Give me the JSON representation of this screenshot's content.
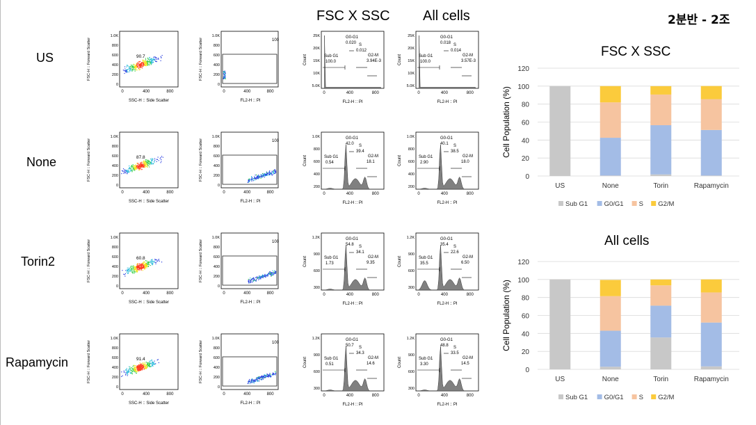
{
  "header": {
    "fsc_ssc": "FSC X SSC",
    "all_cells": "All cells",
    "korean_title": "2분반 - 2조"
  },
  "rows": [
    {
      "label": "US",
      "gate_pct": "90.7",
      "pi_gate": "100",
      "fsc": {
        "g0g1": "G0-G1",
        "g0g1_v": "0.020",
        "s": "S",
        "s_v": "0.012",
        "subg1": "Sub G1",
        "subg1_v": "100.0",
        "g2m": "G2-M",
        "g2m_v": "3.94E-3",
        "yticks": [
          "5.0K",
          "10K",
          "15K",
          "20K",
          "25K"
        ]
      },
      "all": {
        "g0g1": "G0-G1",
        "g0g1_v": "0.018",
        "s": "S",
        "s_v": "0.014",
        "subg1": "Sub G1",
        "subg1_v": "100.0",
        "g2m": "G2-M",
        "g2m_v": "3.57E-3",
        "yticks": [
          "5.0K",
          "10K",
          "15K",
          "20K",
          "25K"
        ]
      }
    },
    {
      "label": "None",
      "gate_pct": "87.8",
      "pi_gate": "100",
      "fsc": {
        "g0g1": "G0-G1",
        "g0g1_v": "42.0",
        "s": "S",
        "s_v": "39.4",
        "subg1": "Sub G1",
        "subg1_v": "0.54",
        "g2m": "G2-M",
        "g2m_v": "18.1",
        "yticks": [
          "200",
          "400",
          "600",
          "800",
          "1.0K"
        ]
      },
      "all": {
        "g0g1": "G0-G1",
        "g0g1_v": "40.1",
        "s": "S",
        "s_v": "38.5",
        "subg1": "Sub G1",
        "subg1_v": "2.90",
        "g2m": "G2-M",
        "g2m_v": "18.0",
        "yticks": [
          "200",
          "400",
          "600",
          "800",
          "1.0K"
        ]
      }
    },
    {
      "label": "Torin2",
      "gate_pct": "60.8",
      "pi_gate": "100",
      "fsc": {
        "g0g1": "G0-G1",
        "g0g1_v": "54.8",
        "s": "S",
        "s_v": "34.1",
        "subg1": "Sub G1",
        "subg1_v": "1.73",
        "g2m": "G2-M",
        "g2m_v": "9.35",
        "yticks": [
          "300",
          "600",
          "900",
          "1.2K"
        ]
      },
      "all": {
        "g0g1": "G0-G1",
        "g0g1_v": "35.4",
        "s": "S",
        "s_v": "22.6",
        "subg1": "Sub G1",
        "subg1_v": "35.5",
        "g2m": "G2-M",
        "g2m_v": "6.50",
        "yticks": [
          "300",
          "600",
          "900",
          "1.2K"
        ]
      }
    },
    {
      "label": "Rapamycin",
      "gate_pct": "91.4",
      "pi_gate": "100",
      "fsc": {
        "g0g1": "G0-G1",
        "g0g1_v": "50.7",
        "s": "S",
        "s_v": "34.3",
        "subg1": "Sub G1",
        "subg1_v": "0.51",
        "g2m": "G2-M",
        "g2m_v": "14.6",
        "yticks": [
          "300",
          "600",
          "900",
          "1.2K"
        ]
      },
      "all": {
        "g0g1": "G0-G1",
        "g0g1_v": "48.8",
        "s": "S",
        "s_v": "33.5",
        "subg1": "Sub G1",
        "subg1_v": "3.30",
        "g2m": "G2-M",
        "g2m_v": "14.5",
        "yticks": [
          "300",
          "600",
          "900",
          "1.2K"
        ]
      }
    }
  ],
  "flow_axes": {
    "scatter_xlabel": "SSC-H :: Side Scatter",
    "scatter_ylabel": "FSC-H :: Forward Scatter",
    "pi_xlabel": "FL2-H :: PI",
    "pi_ylabel": "FSC-H :: Forward Scatter",
    "hist_xlabel": "FL2-H :: PI",
    "hist_ylabel": "Count",
    "xticks": [
      "0",
      "400",
      "800"
    ],
    "scatter_yticks": [
      "0",
      "200",
      "400",
      "600",
      "800",
      "1.0K"
    ],
    "pi_yticks": [
      "0",
      "200",
      "400",
      "600",
      "800",
      "1.0K"
    ]
  },
  "chart_data": [
    {
      "type": "bar",
      "stacked": true,
      "title": "FSC X SSC",
      "ylabel": "Cell Population (%)",
      "ylim": [
        0,
        120
      ],
      "yticks": [
        "0",
        "20",
        "40",
        "60",
        "80",
        "100",
        "120"
      ],
      "categories": [
        "US",
        "None",
        "Torin",
        "Rapamycin"
      ],
      "series": [
        {
          "name": "Sub G1",
          "color": "#c8c8c8",
          "values": [
            100.0,
            0.54,
            1.73,
            0.51
          ]
        },
        {
          "name": "G0/G1",
          "color": "#a3bce6",
          "values": [
            0.02,
            42.0,
            54.8,
            50.7
          ]
        },
        {
          "name": "S",
          "color": "#f6c4a0",
          "values": [
            0.012,
            39.4,
            34.1,
            34.3
          ]
        },
        {
          "name": "G2/M",
          "color": "#fbcb3c",
          "values": [
            0.004,
            18.1,
            9.35,
            14.6
          ]
        }
      ],
      "legend": "bottom"
    },
    {
      "type": "bar",
      "stacked": true,
      "title": "All cells",
      "ylabel": "Cell Population (%)",
      "ylim": [
        0,
        120
      ],
      "yticks": [
        "0",
        "20",
        "40",
        "60",
        "80",
        "100",
        "120"
      ],
      "categories": [
        "US",
        "None",
        "Torin",
        "Rapamycin"
      ],
      "series": [
        {
          "name": "Sub G1",
          "color": "#c8c8c8",
          "values": [
            100.0,
            2.9,
            35.5,
            3.3
          ]
        },
        {
          "name": "G0/G1",
          "color": "#a3bce6",
          "values": [
            0.018,
            40.1,
            35.4,
            48.8
          ]
        },
        {
          "name": "S",
          "color": "#f6c4a0",
          "values": [
            0.014,
            38.5,
            22.6,
            33.5
          ]
        },
        {
          "name": "G2/M",
          "color": "#fbcb3c",
          "values": [
            0.004,
            18.0,
            6.5,
            14.5
          ]
        }
      ],
      "legend": "bottom"
    }
  ]
}
